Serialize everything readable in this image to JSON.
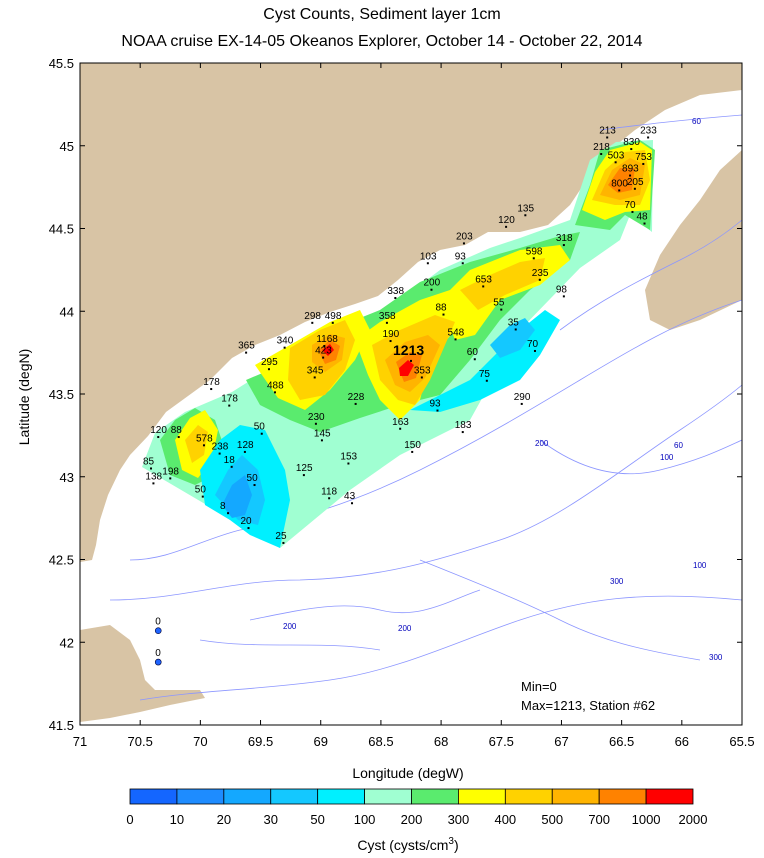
{
  "title": "Cyst Counts, Sediment layer 1cm",
  "subtitle": "NOAA cruise EX-14-05 Okeanos Explorer, October 14 - October 22, 2014",
  "x_axis": {
    "label": "Longitude (degW)",
    "ticks": [
      "71",
      "70.5",
      "70",
      "69.5",
      "69",
      "68.5",
      "68",
      "67.5",
      "67",
      "66.5",
      "66",
      "65.5"
    ]
  },
  "y_axis": {
    "label": "Latitude (degN)",
    "ticks": [
      "45.5",
      "45",
      "44.5",
      "44",
      "43.5",
      "43",
      "42.5",
      "42",
      "41.5"
    ]
  },
  "colorbar": {
    "label": "Cyst (cysts/cm",
    "label_sup": "3",
    "label_end": ")",
    "ticks": [
      "0",
      "10",
      "20",
      "30",
      "50",
      "100",
      "200",
      "300",
      "400",
      "500",
      "700",
      "1000",
      "2000"
    ],
    "colors": [
      "#1466ff",
      "#1e8cff",
      "#14a8ff",
      "#14c8ff",
      "#00f0ff",
      "#a0ffd2",
      "#5aeb6e",
      "#ffff00",
      "#ffd200",
      "#ffb400",
      "#ff8200",
      "#ff0000"
    ]
  },
  "annotation": {
    "min_text": "Min=0",
    "max_text": "Max=1213, Station #62"
  },
  "depth_labels": [
    "60",
    "200",
    "60",
    "100",
    "100",
    "300",
    "200",
    "200",
    "300"
  ],
  "colors": {
    "land": "#d8c4a5",
    "water": "#ffffff",
    "contour": "#8c96ff"
  },
  "chart_data": {
    "type": "heatmap",
    "title": "Cyst Counts, Sediment layer 1cm",
    "subtitle": "NOAA cruise EX-14-05 Okeanos Explorer, October 14 - October 22, 2014",
    "xlabel": "Longitude (degW)",
    "ylabel": "Latitude (degN)",
    "xlim": [
      -71,
      -65.5
    ],
    "ylim": [
      41.5,
      45.5
    ],
    "stations": [
      {
        "lon": -66.62,
        "lat": 45.05,
        "value": 213
      },
      {
        "lon": -66.28,
        "lat": 45.05,
        "value": 233
      },
      {
        "lon": -66.67,
        "lat": 44.95,
        "value": 218
      },
      {
        "lon": -66.42,
        "lat": 44.98,
        "value": 830
      },
      {
        "lon": -66.55,
        "lat": 44.9,
        "value": 503
      },
      {
        "lon": -66.32,
        "lat": 44.89,
        "value": 753
      },
      {
        "lon": -66.43,
        "lat": 44.82,
        "value": 893
      },
      {
        "lon": -66.52,
        "lat": 44.73,
        "value": 800
      },
      {
        "lon": -66.39,
        "lat": 44.74,
        "value": 205
      },
      {
        "lon": -66.41,
        "lat": 44.6,
        "value": 70
      },
      {
        "lon": -66.31,
        "lat": 44.53,
        "value": 48
      },
      {
        "lon": -67.3,
        "lat": 44.58,
        "value": 135
      },
      {
        "lon": -67.46,
        "lat": 44.51,
        "value": 120
      },
      {
        "lon": -67.81,
        "lat": 44.41,
        "value": 203
      },
      {
        "lon": -66.98,
        "lat": 44.4,
        "value": 318
      },
      {
        "lon": -67.23,
        "lat": 44.32,
        "value": 598
      },
      {
        "lon": -68.11,
        "lat": 44.29,
        "value": 103
      },
      {
        "lon": -67.82,
        "lat": 44.29,
        "value": 93
      },
      {
        "lon": -67.18,
        "lat": 44.19,
        "value": 235
      },
      {
        "lon": -67.65,
        "lat": 44.15,
        "value": 653
      },
      {
        "lon": -68.08,
        "lat": 44.13,
        "value": 200
      },
      {
        "lon": -68.38,
        "lat": 44.08,
        "value": 338
      },
      {
        "lon": -66.98,
        "lat": 44.09,
        "value": 98
      },
      {
        "lon": -67.5,
        "lat": 44.01,
        "value": 55
      },
      {
        "lon": -67.98,
        "lat": 43.98,
        "value": 88
      },
      {
        "lon": -68.9,
        "lat": 43.93,
        "value": 498
      },
      {
        "lon": -69.07,
        "lat": 43.93,
        "value": 298
      },
      {
        "lon": -68.45,
        "lat": 43.93,
        "value": 358
      },
      {
        "lon": -67.38,
        "lat": 43.89,
        "value": 35
      },
      {
        "lon": -67.88,
        "lat": 43.83,
        "value": 548
      },
      {
        "lon": -68.42,
        "lat": 43.82,
        "value": 190
      },
      {
        "lon": -69.3,
        "lat": 43.78,
        "value": 340
      },
      {
        "lon": -68.97,
        "lat": 43.79,
        "value": 1168
      },
      {
        "lon": -69.62,
        "lat": 43.75,
        "value": 365
      },
      {
        "lon": -67.22,
        "lat": 43.76,
        "value": 70
      },
      {
        "lon": -68.98,
        "lat": 43.72,
        "value": 423
      },
      {
        "lon": -68.25,
        "lat": 43.7,
        "value": 1213
      },
      {
        "lon": -67.72,
        "lat": 43.71,
        "value": 60
      },
      {
        "lon": -69.43,
        "lat": 43.65,
        "value": 295
      },
      {
        "lon": -69.05,
        "lat": 43.6,
        "value": 345
      },
      {
        "lon": -68.16,
        "lat": 43.6,
        "value": 353
      },
      {
        "lon": -67.62,
        "lat": 43.58,
        "value": 75
      },
      {
        "lon": -69.91,
        "lat": 43.53,
        "value": 178
      },
      {
        "lon": -69.38,
        "lat": 43.51,
        "value": 488
      },
      {
        "lon": -68.71,
        "lat": 43.44,
        "value": 228
      },
      {
        "lon": -67.33,
        "lat": 43.44,
        "value": 290
      },
      {
        "lon": -68.03,
        "lat": 43.4,
        "value": 93
      },
      {
        "lon": -69.76,
        "lat": 43.43,
        "value": 178
      },
      {
        "lon": -69.04,
        "lat": 43.32,
        "value": 230
      },
      {
        "lon": -68.34,
        "lat": 43.29,
        "value": 163
      },
      {
        "lon": -67.82,
        "lat": 43.27,
        "value": 183
      },
      {
        "lon": -69.49,
        "lat": 43.26,
        "value": 50
      },
      {
        "lon": -70.35,
        "lat": 43.24,
        "value": 120
      },
      {
        "lon": -70.18,
        "lat": 43.24,
        "value": 88
      },
      {
        "lon": -68.99,
        "lat": 43.22,
        "value": 145
      },
      {
        "lon": -69.97,
        "lat": 43.19,
        "value": 578
      },
      {
        "lon": -69.63,
        "lat": 43.15,
        "value": 128
      },
      {
        "lon": -68.24,
        "lat": 43.15,
        "value": 150
      },
      {
        "lon": -69.84,
        "lat": 43.14,
        "value": 238
      },
      {
        "lon": -68.77,
        "lat": 43.08,
        "value": 153
      },
      {
        "lon": -70.41,
        "lat": 43.05,
        "value": 85
      },
      {
        "lon": -69.74,
        "lat": 43.06,
        "value": 18
      },
      {
        "lon": -69.14,
        "lat": 43.01,
        "value": 125
      },
      {
        "lon": -70.25,
        "lat": 42.99,
        "value": 198
      },
      {
        "lon": -70.39,
        "lat": 42.96,
        "value": 138
      },
      {
        "lon": -69.55,
        "lat": 42.95,
        "value": 50
      },
      {
        "lon": -68.93,
        "lat": 42.87,
        "value": 118
      },
      {
        "lon": -69.98,
        "lat": 42.88,
        "value": 50
      },
      {
        "lon": -68.74,
        "lat": 42.84,
        "value": 43
      },
      {
        "lon": -69.77,
        "lat": 42.78,
        "value": 8
      },
      {
        "lon": -69.6,
        "lat": 42.69,
        "value": 20
      },
      {
        "lon": -69.31,
        "lat": 42.6,
        "value": 25
      },
      {
        "lon": -70.35,
        "lat": 42.07,
        "value": 0
      },
      {
        "lon": -70.35,
        "lat": 41.88,
        "value": 0
      }
    ]
  }
}
